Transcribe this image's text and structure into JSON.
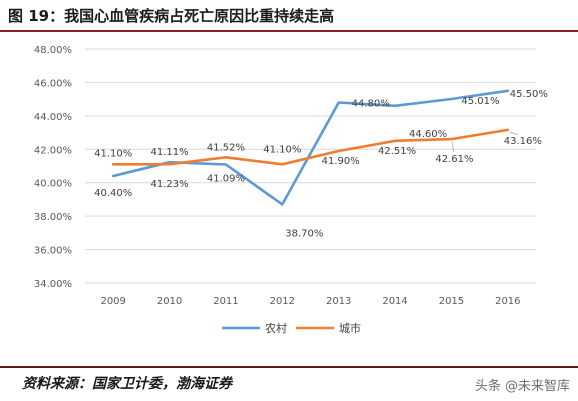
{
  "chart_data": {
    "type": "line",
    "title": "图 19：我国心血管疾病占死亡原因比重持续走高",
    "categories": [
      "2009",
      "2010",
      "2011",
      "2012",
      "2013",
      "2014",
      "2015",
      "2016"
    ],
    "series": [
      {
        "name": "农村",
        "color": "#5B9BD5",
        "values": [
          40.4,
          41.23,
          41.09,
          38.7,
          44.8,
          44.6,
          45.01,
          45.5
        ],
        "labels": [
          "40.40%",
          "41.23%",
          "41.09%",
          "38.70%",
          "44.80%",
          "44.60%",
          "45.01%",
          "45.50%"
        ]
      },
      {
        "name": "城市",
        "color": "#ED7D31",
        "values": [
          41.1,
          41.11,
          41.52,
          41.1,
          41.9,
          42.51,
          42.61,
          43.16
        ],
        "labels": [
          "41.10%",
          "41.11%",
          "41.52%",
          "41.10%",
          "41.90%",
          "42.51%",
          "42.61%",
          "43.16%"
        ]
      }
    ],
    "yticks": [
      "34.00%",
      "36.00%",
      "38.00%",
      "40.00%",
      "42.00%",
      "44.00%",
      "46.00%",
      "48.00%"
    ],
    "ylim": [
      34,
      48
    ],
    "xlabel": "",
    "ylabel": "",
    "grid": true,
    "legend": "bottom"
  },
  "footer": {
    "source": "资料来源：国家卫计委，渤海证券",
    "watermark": "头条 @未来智库"
  }
}
